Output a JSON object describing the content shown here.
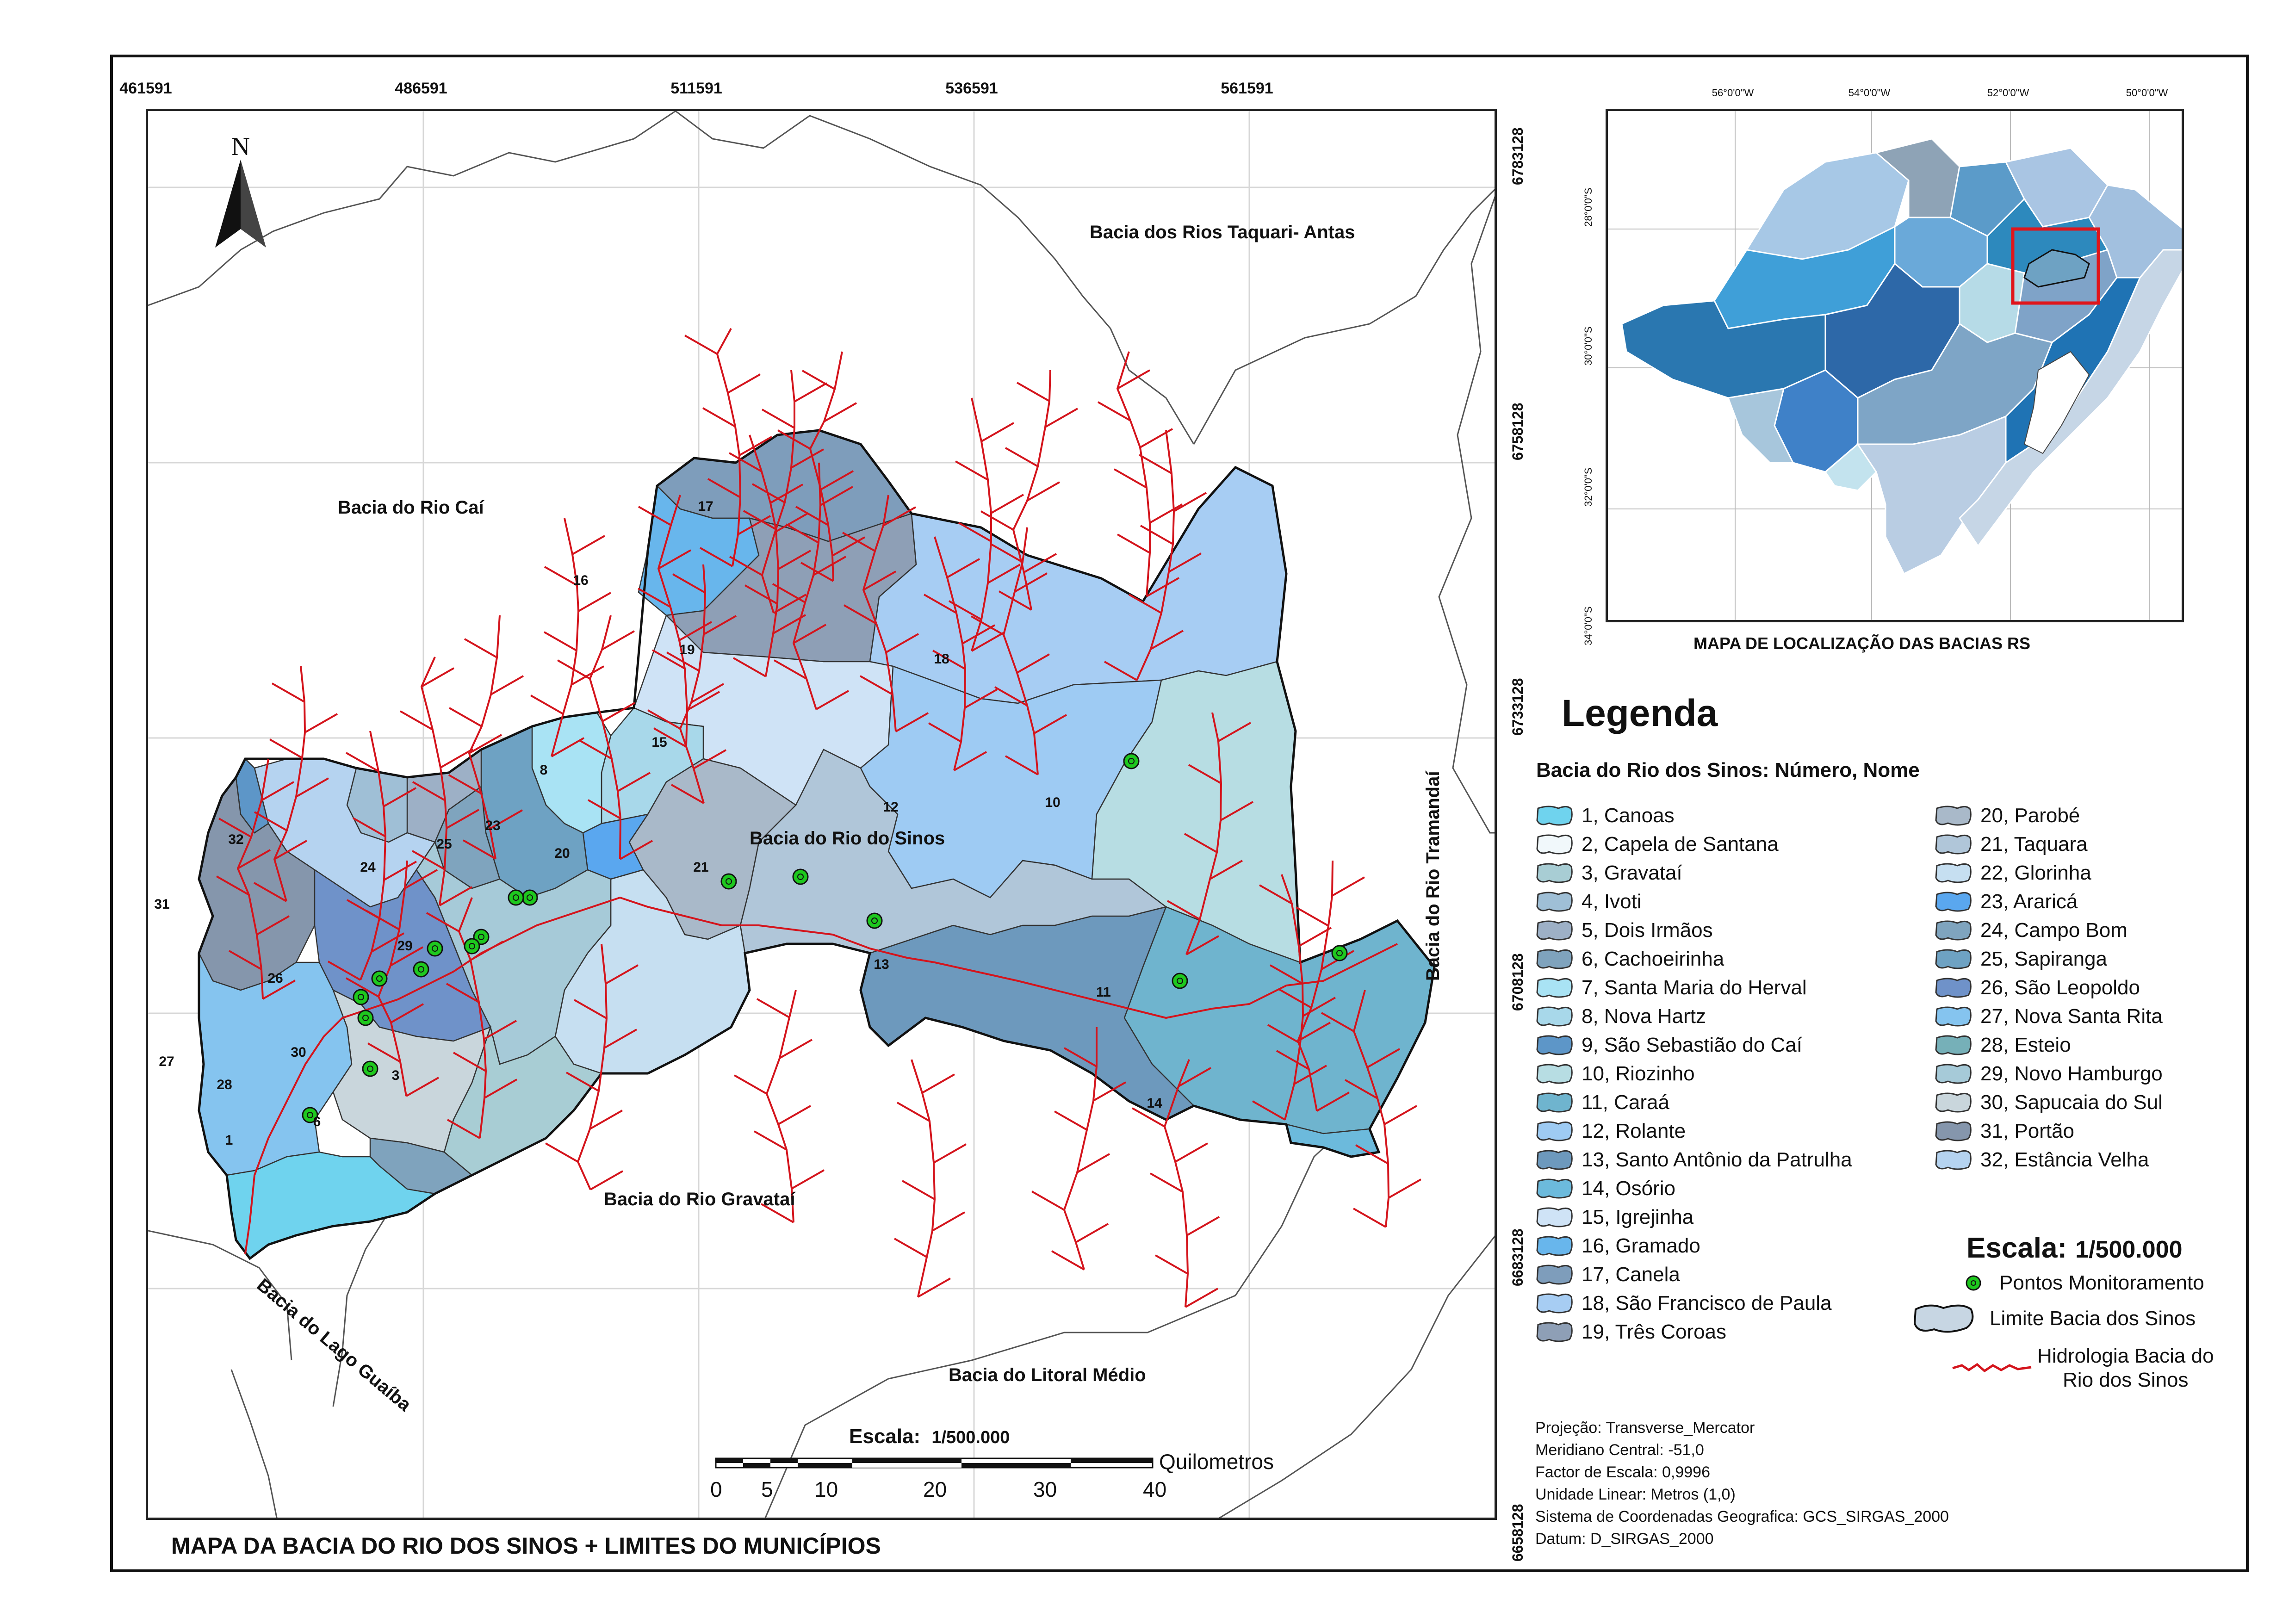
{
  "main_title": "MAPA DA BACIA DO RIO DOS SINOS + LIMITES DO MUNICÍPIOS",
  "grid_x": [
    "461591",
    "486591",
    "511591",
    "536591",
    "561591"
  ],
  "grid_y": [
    "6783128",
    "6758128",
    "6733128",
    "6708128",
    "6683128",
    "6658128"
  ],
  "north_label": "N",
  "basins": {
    "taquari": "Bacia dos Rios Taquari- Antas",
    "cai": "Bacia do Rio Caí",
    "sinos": "Bacia do Rio do Sinos",
    "tramandai": "Bacia do Rio Tramandaí",
    "gravatai": "Bacia do Rio Gravataí",
    "guaiba": "Bacia do Lago Guaíba",
    "litoral": "Bacia do Litoral Médio"
  },
  "map_scale": {
    "label": "Escala:",
    "value": "1/500.000",
    "unit": "Quilometros",
    "ticks": [
      "0",
      "5",
      "10",
      "20",
      "30",
      "40"
    ]
  },
  "inset": {
    "title": "MAPA DE LOCALIZAÇÃO DAS BACIAS RS",
    "lon_ticks": [
      "56°0'0\"W",
      "54°0'0\"W",
      "52°0'0\"W",
      "50°0'0\"W"
    ],
    "lat_ticks": [
      "28°0'0\"S",
      "30°0'0\"S",
      "32°0'0\"S",
      "34°0'0\"S"
    ]
  },
  "legend": {
    "title": "Legenda",
    "subtitle": "Bacia do Rio dos Sinos: Número, Nome",
    "items": [
      {
        "label": "1, Canoas",
        "color": "#6fd3ee"
      },
      {
        "label": "2, Capela de Santana",
        "color": "#f1f8fb"
      },
      {
        "label": "3, Gravataí",
        "color": "#a8cdd4"
      },
      {
        "label": "4, Ivoti",
        "color": "#9fbfd6"
      },
      {
        "label": "5, Dois Irmãos",
        "color": "#9db0c6"
      },
      {
        "label": "6, Cachoeirinha",
        "color": "#7fa3bd"
      },
      {
        "label": "7, Santa Maria do Herval",
        "color": "#a9e3f4"
      },
      {
        "label": "8, Nova Hartz",
        "color": "#a8d8ea"
      },
      {
        "label": "9, São Sebastião do Caí",
        "color": "#5d96c8"
      },
      {
        "label": "10, Riozinho",
        "color": "#b7dde3"
      },
      {
        "label": "11, Caraá",
        "color": "#6fb4ce"
      },
      {
        "label": "12, Rolante",
        "color": "#9ecbf3"
      },
      {
        "label": "13, Santo Antônio da Patrulha",
        "color": "#6d99bd"
      },
      {
        "label": "14, Osório",
        "color": "#6cbadc"
      },
      {
        "label": "15, Igrejinha",
        "color": "#cfe3f6"
      },
      {
        "label": "16, Gramado",
        "color": "#68b6ec"
      },
      {
        "label": "17, Canela",
        "color": "#7e9dbb"
      },
      {
        "label": "18, São Francisco de Paula",
        "color": "#a7cdf3"
      },
      {
        "label": "19, Três Coroas",
        "color": "#8e9fb6"
      },
      {
        "label": "20, Parobé",
        "color": "#a9b9c9"
      },
      {
        "label": "21, Taquara",
        "color": "#b0c6d9"
      },
      {
        "label": "22, Glorinha",
        "color": "#c6dff1"
      },
      {
        "label": "23, Araricá",
        "color": "#5aa7ef"
      },
      {
        "label": "24, Campo Bom",
        "color": "#7fa4be"
      },
      {
        "label": "25, Sapiranga",
        "color": "#6ea2c3"
      },
      {
        "label": "26, São Leopoldo",
        "color": "#6f92c9"
      },
      {
        "label": "27, Nova Santa Rita",
        "color": "#85c4ef"
      },
      {
        "label": "28, Esteio",
        "color": "#76b0b8"
      },
      {
        "label": "29, Novo Hamburgo",
        "color": "#a6cad8"
      },
      {
        "label": "30, Sapucaia do Sul",
        "color": "#c9d6dc"
      },
      {
        "label": "31, Portão",
        "color": "#8596ac"
      },
      {
        "label": "32, Estância Velha",
        "color": "#b5d3f0"
      }
    ],
    "scale_label": "Escala:",
    "scale_value": "1/500.000",
    "symbols": {
      "points": "Pontos Monitoramento",
      "boundary": "Limite Bacia dos Sinos",
      "hydro_line1": "Hidrologia Bacia do",
      "hydro_line2": "Rio dos Sinos"
    }
  },
  "projection": [
    "Projeção: Transverse_Mercator",
    "Meridiano Central: -51,0",
    "Factor de Escala: 0,9996",
    "Unidade Linear: Metros (1,0)",
    "Sistema de Coordenadas Geografica: GCS_SIRGAS_2000",
    "Datum: D_SIRGAS_2000"
  ],
  "colors": {
    "river": "#d4141c",
    "point": "#1ec81e",
    "inset_highlight": "#e0151b",
    "border": "#222222"
  }
}
